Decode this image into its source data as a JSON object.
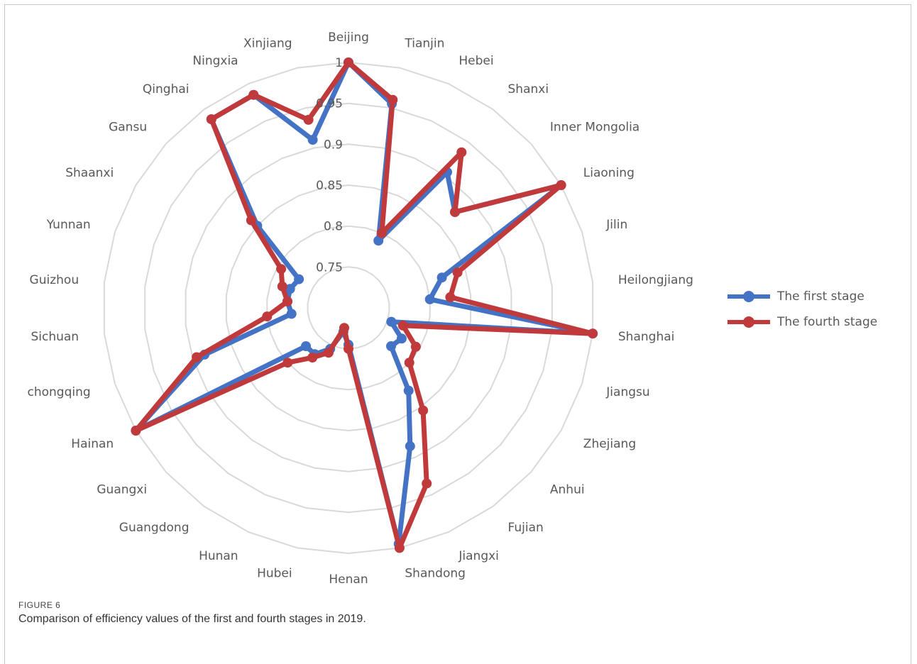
{
  "chart_data": {
    "type": "radar",
    "categories": [
      "Beijing",
      "Tianjin",
      "Hebei",
      "Shanxi",
      "Inner Mongolia",
      "Liaoning",
      "Jilin",
      "Heilongjiang",
      "Shanghai",
      "Jiangsu",
      "Zhejiang",
      "Anhui",
      "Fujian",
      "Jiangxi",
      "Shandong",
      "Henan",
      "Hubei",
      "Hunan",
      "Guangdong",
      "Guangxi",
      "Hainan",
      "chongqing",
      "Sichuan",
      "Guizhou",
      "Yunnan",
      "Shaanxi",
      "Gansu",
      "Qinghai",
      "Ningxia",
      "Xinjiang"
    ],
    "rlim": [
      0.7,
      1
    ],
    "ticks": [
      "0.75",
      "0.8",
      "0.85",
      "0.9",
      "0.95",
      "1"
    ],
    "grid": true,
    "legend_position": "right",
    "series": [
      {
        "name": "The first stage",
        "color": "#4472C4",
        "values": [
          1.0,
          0.955,
          0.79,
          0.905,
          0.875,
          1.0,
          0.82,
          0.8,
          1.0,
          0.755,
          0.775,
          0.77,
          0.825,
          0.885,
          0.995,
          0.745,
          0.73,
          0.755,
          0.77,
          0.77,
          1.0,
          0.885,
          0.77,
          0.775,
          0.775,
          0.77,
          0.85,
          0.985,
          0.985,
          0.91
        ]
      },
      {
        "name": "The fourth stage",
        "color": "#C0393B",
        "values": [
          1.0,
          0.96,
          0.8,
          0.935,
          0.875,
          1.0,
          0.84,
          0.825,
          1.0,
          0.77,
          0.795,
          0.8,
          0.855,
          0.935,
          1.0,
          0.75,
          0.725,
          0.76,
          0.775,
          0.8,
          1.0,
          0.895,
          0.8,
          0.775,
          0.785,
          0.795,
          0.86,
          0.985,
          0.985,
          0.935
        ]
      }
    ]
  },
  "figure": {
    "label": "FIGURE 6",
    "caption": "Comparison of efficiency values of the first and fourth stages in 2019."
  }
}
